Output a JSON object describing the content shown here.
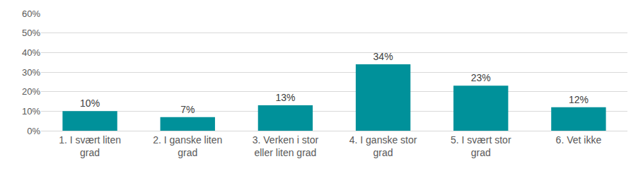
{
  "chart_data": {
    "type": "bar",
    "categories": [
      "1. I svært liten grad",
      "2. I ganske liten grad",
      "3. Verken i stor eller liten grad",
      "4. I ganske stor grad",
      "5. I svært stor grad",
      "6. Vet ikke"
    ],
    "values": [
      10,
      7,
      13,
      34,
      23,
      12
    ],
    "value_labels": [
      "10%",
      "7%",
      "13%",
      "34%",
      "23%",
      "12%"
    ],
    "color": "#00919a",
    "ylim": [
      0,
      60
    ],
    "yticks": [
      {
        "value": 0,
        "label": "0%"
      },
      {
        "value": 10,
        "label": "10%"
      },
      {
        "value": 20,
        "label": "20%"
      },
      {
        "value": 30,
        "label": "30%"
      },
      {
        "value": 40,
        "label": "40%"
      },
      {
        "value": 50,
        "label": "50%"
      },
      {
        "value": 60,
        "label": "60%"
      }
    ],
    "grid": true,
    "data_labels": true
  }
}
